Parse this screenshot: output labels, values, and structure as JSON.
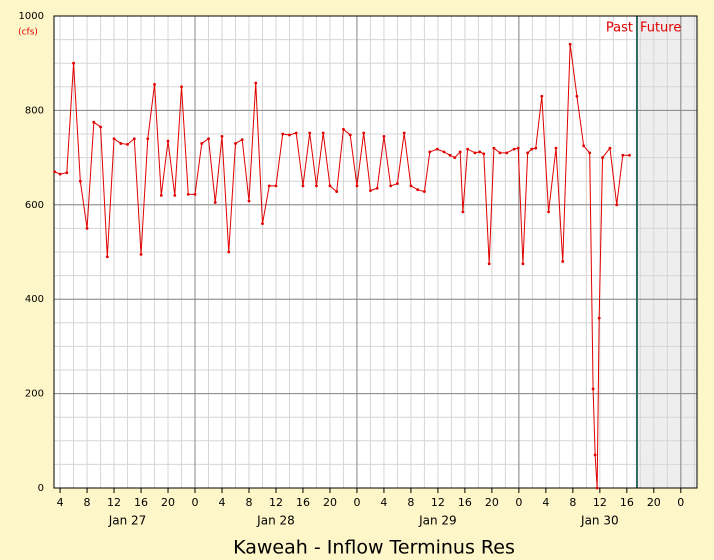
{
  "chart_data": {
    "type": "line",
    "title": "Kaweah - Inflow Terminus Res",
    "y_unit": "(cfs)",
    "past_label": "Past",
    "future_label": "Future",
    "now": 89.5,
    "color": "#e00000",
    "x": [
      3.2,
      4,
      5,
      6,
      7,
      8,
      9,
      10,
      11,
      12,
      13,
      14,
      15,
      16,
      17,
      18,
      19,
      20,
      21,
      22,
      23,
      24,
      25,
      26,
      27,
      28,
      29,
      30,
      31,
      32,
      33,
      34,
      35,
      36,
      37,
      38,
      39,
      40,
      41,
      42,
      43,
      44,
      45,
      46,
      47,
      48,
      49,
      50,
      51,
      52,
      53,
      54,
      55,
      56,
      57,
      58,
      58.8,
      59.9,
      60.9,
      61.8,
      62.5,
      63.3,
      63.7,
      64.4,
      65.5,
      66.2,
      66.8,
      67.6,
      68.3,
      69.2,
      70.2,
      71.3,
      71.9,
      72.6,
      73.3,
      73.9,
      74.5,
      75.4,
      76.4,
      77.5,
      78.5,
      79.6,
      80.6,
      81.6,
      82.5,
      83.0,
      83.3,
      83.6,
      83.9,
      84.4,
      85.5,
      86.5,
      87.4,
      88.4
    ],
    "values": [
      670,
      665,
      668,
      900,
      650,
      550,
      775,
      765,
      490,
      740,
      730,
      728,
      740,
      495,
      740,
      855,
      620,
      735,
      620,
      850,
      622,
      622,
      730,
      740,
      605,
      745,
      500,
      730,
      738,
      608,
      858,
      560,
      640,
      640,
      750,
      748,
      752,
      640,
      752,
      640,
      752,
      640,
      628,
      760,
      748,
      640,
      752,
      630,
      635,
      745,
      640,
      645,
      752,
      640,
      632,
      628,
      712,
      718,
      712,
      705,
      700,
      712,
      585,
      718,
      710,
      712,
      708,
      475,
      720,
      710,
      710,
      718,
      720,
      475,
      710,
      718,
      720,
      830,
      585,
      720,
      480,
      940,
      830,
      725,
      710,
      210,
      70,
      0,
      360,
      700,
      720,
      600,
      705,
      705
    ],
    "xlim": [
      3.1,
      98.4
    ],
    "ylim": [
      0,
      1000
    ],
    "yticks": [
      0,
      200,
      400,
      600,
      800,
      1000
    ],
    "xticks": [
      {
        "value": 4,
        "label": "4"
      },
      {
        "value": 8,
        "label": "8"
      },
      {
        "value": 12,
        "label": "12"
      },
      {
        "value": 16,
        "label": "16"
      },
      {
        "value": 20,
        "label": "20"
      },
      {
        "value": 24,
        "label": "0"
      },
      {
        "value": 28,
        "label": "4"
      },
      {
        "value": 32,
        "label": "8"
      },
      {
        "value": 36,
        "label": "12"
      },
      {
        "value": 40,
        "label": "16"
      },
      {
        "value": 44,
        "label": "20"
      },
      {
        "value": 48,
        "label": "0"
      },
      {
        "value": 52,
        "label": "4"
      },
      {
        "value": 56,
        "label": "8"
      },
      {
        "value": 60,
        "label": "12"
      },
      {
        "value": 64,
        "label": "16"
      },
      {
        "value": 68,
        "label": "20"
      },
      {
        "value": 72,
        "label": "0"
      },
      {
        "value": 76,
        "label": "4"
      },
      {
        "value": 80,
        "label": "8"
      },
      {
        "value": 84,
        "label": "12"
      },
      {
        "value": 88,
        "label": "16"
      },
      {
        "value": 92,
        "label": "20"
      },
      {
        "value": 96,
        "label": "0"
      }
    ],
    "day_labels": [
      {
        "value": 14,
        "label": "Jan 27"
      },
      {
        "value": 36,
        "label": "Jan 28"
      },
      {
        "value": 60,
        "label": "Jan 29"
      },
      {
        "value": 84,
        "label": "Jan 30"
      }
    ],
    "grid": true,
    "xminor_step": 2,
    "yminor_step": 50,
    "day_hours": 24
  }
}
